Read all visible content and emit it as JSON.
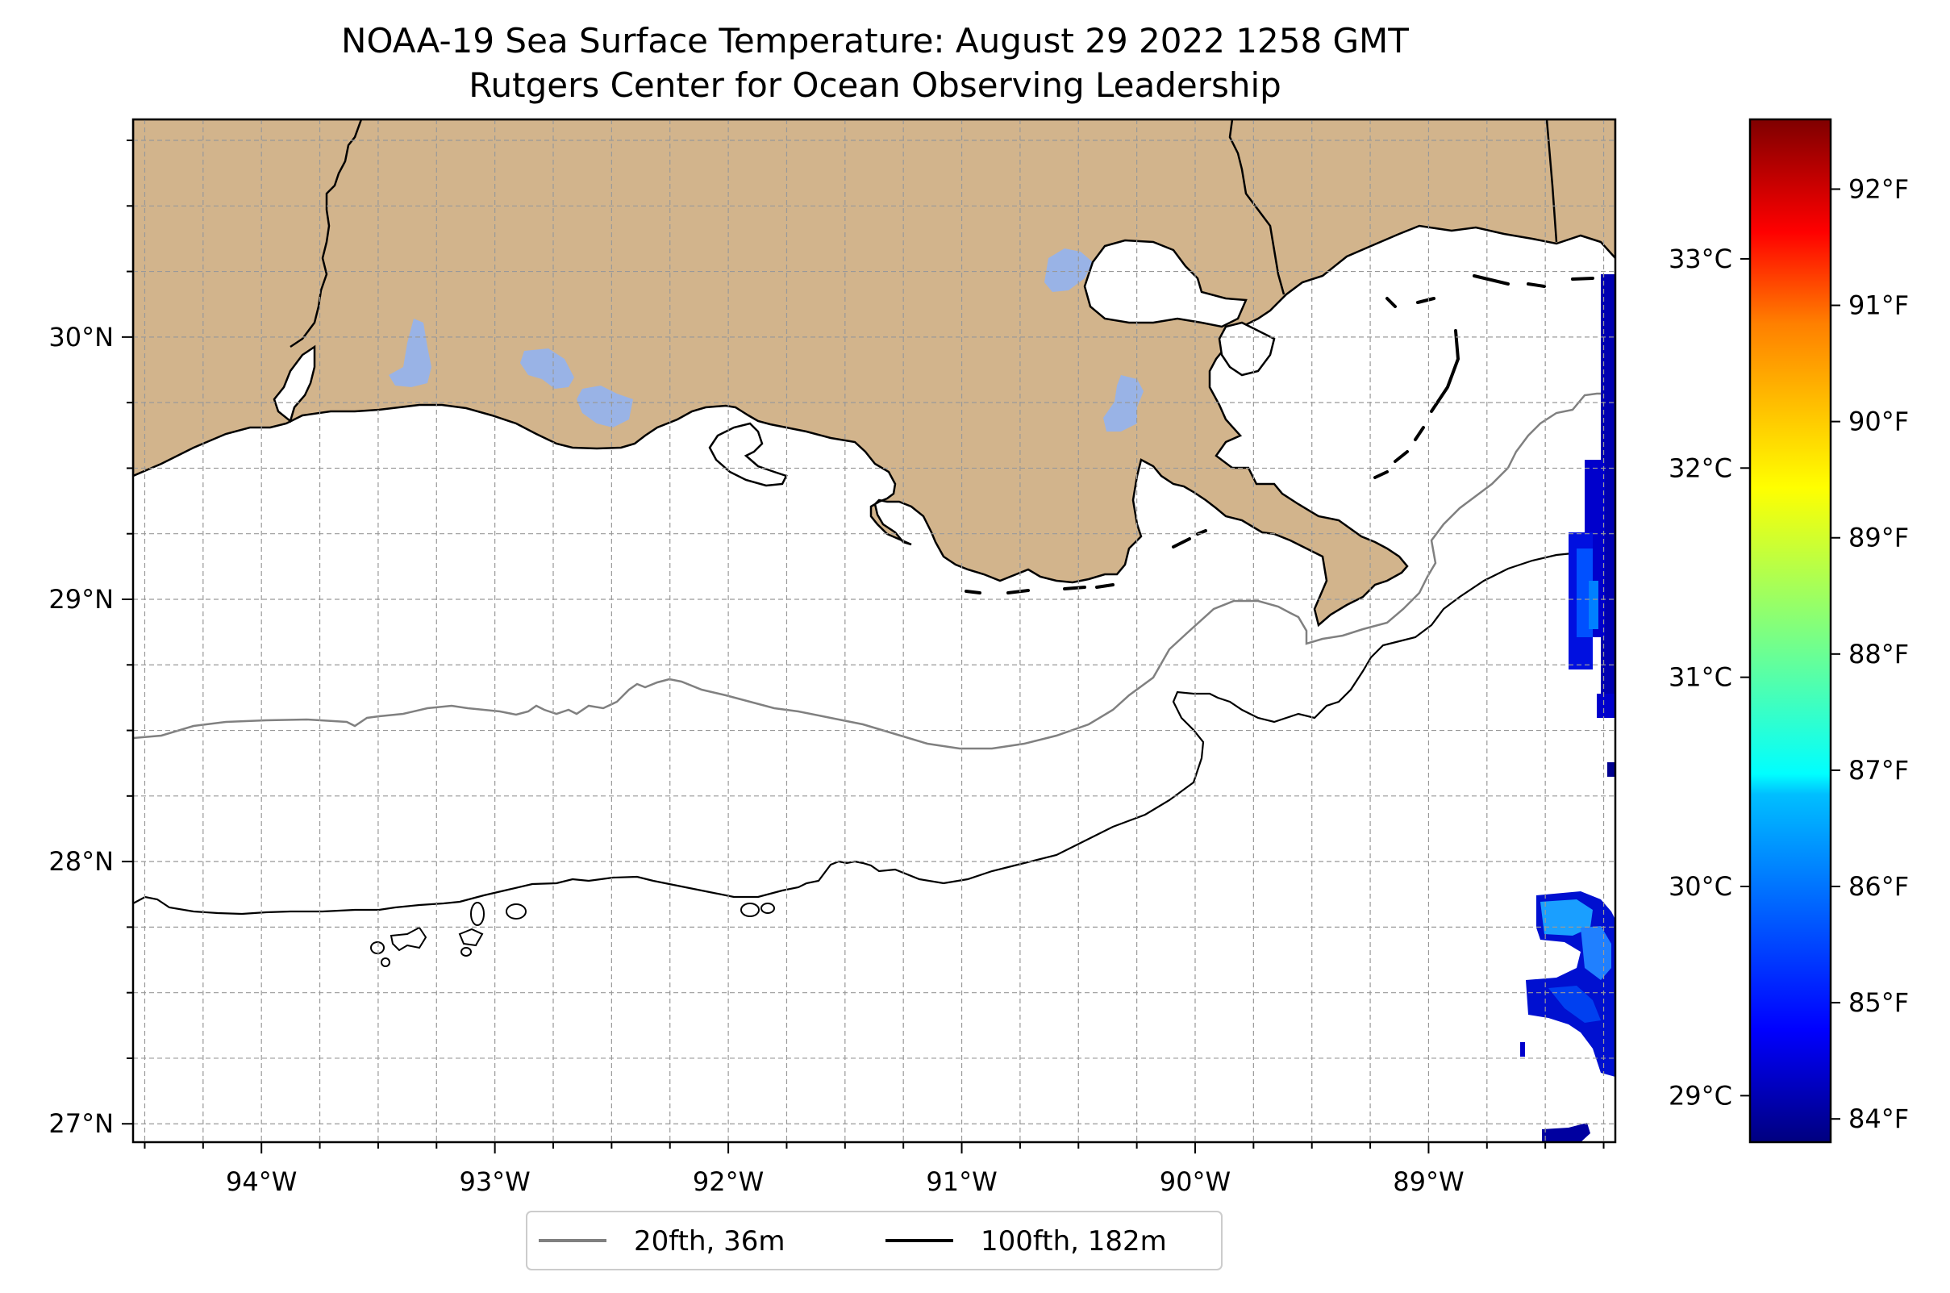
{
  "title": {
    "line1": "NOAA-19 Sea Surface Temperature: August 29 2022 1258 GMT",
    "line2": "Rutgers Center for Ocean Observing Leadership"
  },
  "map": {
    "lon_range": [
      -94.55,
      -88.2
    ],
    "lat_range": [
      26.93,
      30.83
    ],
    "land_color": "#d2b48c",
    "lake_color": "#99b3e6",
    "ocean_color": "#ffffff",
    "lon_ticks": [
      {
        "value": -94,
        "label": "94°W"
      },
      {
        "value": -93,
        "label": "93°W"
      },
      {
        "value": -92,
        "label": "92°W"
      },
      {
        "value": -91,
        "label": "91°W"
      },
      {
        "value": -90,
        "label": "90°W"
      },
      {
        "value": -89,
        "label": "89°W"
      }
    ],
    "lat_ticks": [
      {
        "value": 30,
        "label": "30°N"
      },
      {
        "value": 29,
        "label": "29°N"
      },
      {
        "value": 28,
        "label": "28°N"
      },
      {
        "value": 27,
        "label": "27°N"
      }
    ],
    "grid": true,
    "grid_style": "dashed"
  },
  "legend": {
    "placement": "bottom-center",
    "items": [
      {
        "label": "20fth, 36m",
        "color": "#808080"
      },
      {
        "label": "100fth, 182m",
        "color": "#000000"
      }
    ]
  },
  "colorbar": {
    "colormap": "jet",
    "range_f": [
      83.8,
      92.6
    ],
    "f_ticks": [
      {
        "value": 84,
        "label": "84°F"
      },
      {
        "value": 85,
        "label": "85°F"
      },
      {
        "value": 86,
        "label": "86°F"
      },
      {
        "value": 87,
        "label": "87°F"
      },
      {
        "value": 88,
        "label": "88°F"
      },
      {
        "value": 89,
        "label": "89°F"
      },
      {
        "value": 90,
        "label": "90°F"
      },
      {
        "value": 91,
        "label": "91°F"
      },
      {
        "value": 92,
        "label": "92°F"
      }
    ],
    "c_ticks": [
      {
        "value": 29,
        "label": "29°C"
      },
      {
        "value": 30,
        "label": "30°C"
      },
      {
        "value": 31,
        "label": "31°C"
      },
      {
        "value": 32,
        "label": "32°C"
      },
      {
        "value": 33,
        "label": "33°C"
      }
    ]
  }
}
